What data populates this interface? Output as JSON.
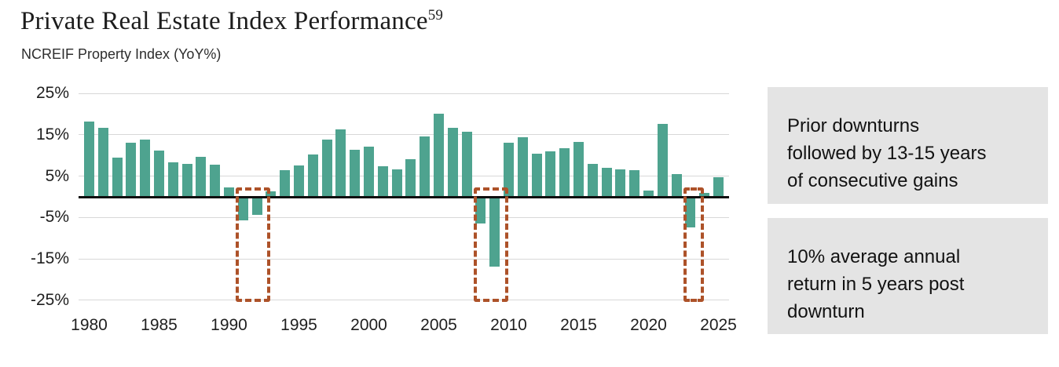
{
  "header": {
    "title": "Private Real Estate Index Performance",
    "title_footnote": "59",
    "subtitle": "NCREIF Property Index (YoY%)"
  },
  "chart_data": {
    "type": "bar",
    "title": "Private Real Estate Index Performance",
    "subtitle": "NCREIF Property Index (YoY%)",
    "unit": "percent YoY",
    "ylim": [
      -25,
      25
    ],
    "grid": "horizontal gridlines at ±5, ±15, ±25; bold black line at 0",
    "legend_position": "none",
    "y_tick_labels": [
      "25%",
      "15%",
      "5%",
      "-5%",
      "-15%",
      "-25%"
    ],
    "y_tick_values": [
      25,
      15,
      5,
      -5,
      -15,
      -25
    ],
    "x_tick_labels": [
      "1980",
      "1985",
      "1990",
      "1995",
      "2000",
      "2005",
      "2010",
      "2015",
      "2020",
      "2025"
    ],
    "years": [
      1980,
      1981,
      1982,
      1983,
      1984,
      1985,
      1986,
      1987,
      1988,
      1989,
      1990,
      1991,
      1992,
      1993,
      1994,
      1995,
      1996,
      1997,
      1998,
      1999,
      2000,
      2001,
      2002,
      2003,
      2004,
      2005,
      2006,
      2007,
      2008,
      2009,
      2010,
      2011,
      2012,
      2013,
      2014,
      2015,
      2016,
      2017,
      2018,
      2019,
      2020,
      2021,
      2022,
      2023,
      2024,
      2025
    ],
    "values": [
      18.1,
      16.6,
      9.4,
      13.1,
      13.8,
      11.2,
      8.3,
      8.0,
      9.6,
      7.8,
      2.3,
      -5.6,
      -4.3,
      1.4,
      6.4,
      7.5,
      10.3,
      13.9,
      16.2,
      11.4,
      12.2,
      7.3,
      6.7,
      9.0,
      14.5,
      20.1,
      16.6,
      15.8,
      -6.5,
      -16.9,
      13.1,
      14.3,
      10.5,
      11.0,
      11.8,
      13.3,
      8.0,
      7.0,
      6.7,
      6.4,
      1.6,
      17.7,
      5.5,
      -7.3,
      0.9,
      4.8
    ],
    "downturn_highlights": [
      {
        "from_year": 1991,
        "to_year": 1992
      },
      {
        "from_year": 2008,
        "to_year": 2009
      },
      {
        "from_year": 2023,
        "to_year": 2023
      }
    ]
  },
  "annotations": [
    {
      "lines": [
        "Prior downturns",
        "followed by 13-15 years",
        "of consecutive gains"
      ]
    },
    {
      "lines": [
        "10% average annual",
        "return in 5 years post",
        "downturn"
      ]
    }
  ],
  "colors": {
    "bar": "#4ea38f",
    "highlight_box": "#ad5229",
    "gridline": "#d8d8d8",
    "zero_line": "#0e0e0e",
    "annotation_bg": "#e4e4e4",
    "text": "#1f1f1f"
  }
}
